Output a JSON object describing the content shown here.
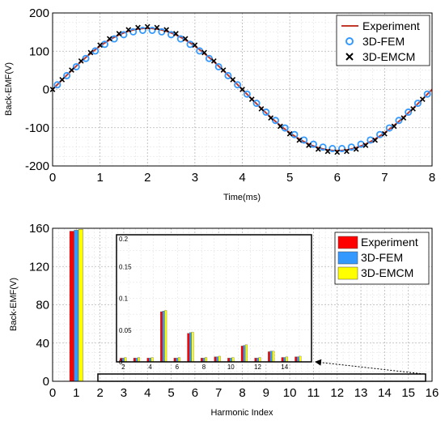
{
  "chart_data": [
    {
      "type": "line",
      "xlabel": "Time(ms)",
      "ylabel": "Back-EMF(V)",
      "xlim": [
        0,
        8
      ],
      "ylim": [
        -200,
        200
      ],
      "xticks": [
        "0",
        "1",
        "2",
        "3",
        "4",
        "5",
        "6",
        "7",
        "8"
      ],
      "yticks": [
        "200",
        "100",
        "0",
        "-100",
        "-200"
      ],
      "grid": true,
      "legend_position": "top-right",
      "series": [
        {
          "name": "Experiment",
          "style": "line",
          "color": "#c0392b",
          "amplitude": 160,
          "period_ms": 8,
          "x_start": 0,
          "x_end": 8
        },
        {
          "name": "3D-FEM",
          "style": "circle",
          "color": "#3399ff",
          "amplitude": 155,
          "period_ms": 8,
          "x_start": 0.1,
          "x_end": 7.9,
          "step": 0.2
        },
        {
          "name": "3D-EMCM",
          "style": "cross",
          "color": "#000000",
          "amplitude": 164,
          "period_ms": 8,
          "x_start": 0,
          "x_end": 7.8,
          "step": 0.2
        }
      ]
    },
    {
      "type": "bar",
      "xlabel": "Harmonic Index",
      "ylabel": "Back-EMF(V)",
      "xlim": [
        0,
        16
      ],
      "ylim": [
        0,
        160
      ],
      "xticks": [
        "0",
        "1",
        "2",
        "3",
        "4",
        "5",
        "6",
        "7",
        "8",
        "9",
        "10",
        "11",
        "12",
        "13",
        "14",
        "15",
        "16"
      ],
      "yticks": [
        "160",
        "120",
        "80",
        "40",
        "0"
      ],
      "grid": true,
      "legend_position": "top-right",
      "categories": [
        1
      ],
      "series": [
        {
          "name": "Experiment",
          "color": "#ff0000",
          "values": [
            157
          ]
        },
        {
          "name": "3D-FEM",
          "color": "#3399ff",
          "values": [
            158
          ]
        },
        {
          "name": "3D-EMCM",
          "color": "#ffff00",
          "values": [
            159
          ]
        }
      ],
      "inset": {
        "xlim": [
          1.5,
          16
        ],
        "ylim": [
          0,
          0.2
        ],
        "xticks": [
          "2",
          "4",
          "6",
          "8",
          "10",
          "12",
          "14"
        ],
        "yticks": [
          "0.2",
          "0.15",
          "0.1",
          "0.05",
          "0"
        ],
        "categories": [
          2,
          3,
          4,
          5,
          6,
          7,
          8,
          9,
          10,
          11,
          12,
          13,
          14,
          15
        ],
        "series": [
          {
            "name": "Experiment",
            "color": "#ff0000",
            "values": [
              0.006,
              0.006,
              0.006,
              0.079,
              0.006,
              0.045,
              0.006,
              0.008,
              0.006,
              0.025,
              0.006,
              0.016,
              0.007,
              0.008
            ]
          },
          {
            "name": "3D-FEM",
            "color": "#3399ff",
            "values": [
              0.006,
              0.006,
              0.006,
              0.08,
              0.006,
              0.046,
              0.006,
              0.008,
              0.006,
              0.026,
              0.006,
              0.017,
              0.007,
              0.008
            ]
          },
          {
            "name": "3D-EMCM",
            "color": "#ffff00",
            "values": [
              0.007,
              0.007,
              0.007,
              0.081,
              0.007,
              0.047,
              0.007,
              0.009,
              0.007,
              0.027,
              0.007,
              0.017,
              0.008,
              0.009
            ]
          }
        ]
      }
    }
  ]
}
